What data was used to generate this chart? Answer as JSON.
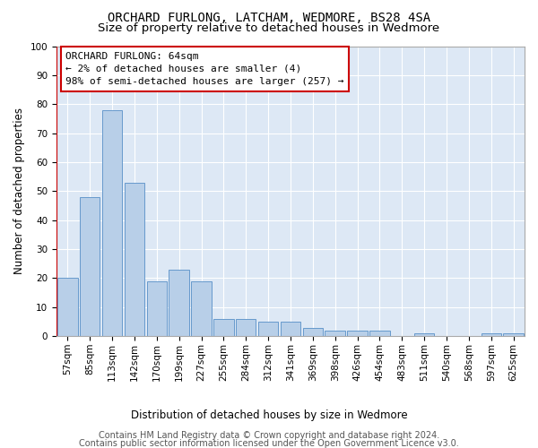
{
  "title": "ORCHARD FURLONG, LATCHAM, WEDMORE, BS28 4SA",
  "subtitle": "Size of property relative to detached houses in Wedmore",
  "xlabel": "Distribution of detached houses by size in Wedmore",
  "ylabel": "Number of detached properties",
  "categories": [
    "57sqm",
    "85sqm",
    "113sqm",
    "142sqm",
    "170sqm",
    "199sqm",
    "227sqm",
    "255sqm",
    "284sqm",
    "312sqm",
    "341sqm",
    "369sqm",
    "398sqm",
    "426sqm",
    "454sqm",
    "483sqm",
    "511sqm",
    "540sqm",
    "568sqm",
    "597sqm",
    "625sqm"
  ],
  "values": [
    20,
    48,
    78,
    53,
    19,
    23,
    19,
    6,
    6,
    5,
    5,
    3,
    2,
    2,
    2,
    0,
    1,
    0,
    0,
    1,
    1
  ],
  "bar_color": "#b8cfe8",
  "bar_edge_color": "#6699cc",
  "ylim": [
    0,
    100
  ],
  "yticks": [
    0,
    10,
    20,
    30,
    40,
    50,
    60,
    70,
    80,
    90,
    100
  ],
  "annotation_text_line1": "ORCHARD FURLONG: 64sqm",
  "annotation_text_line2": "← 2% of detached houses are smaller (4)",
  "annotation_text_line3": "98% of semi-detached houses are larger (257) →",
  "vline_color": "#cc0000",
  "footer1": "Contains HM Land Registry data © Crown copyright and database right 2024.",
  "footer2": "Contains public sector information licensed under the Open Government Licence v3.0.",
  "bg_color": "#dde8f5",
  "title_fontsize": 10,
  "subtitle_fontsize": 9.5,
  "annotation_fontsize": 8,
  "axis_label_fontsize": 8.5,
  "tick_fontsize": 7.5,
  "footer_fontsize": 7
}
